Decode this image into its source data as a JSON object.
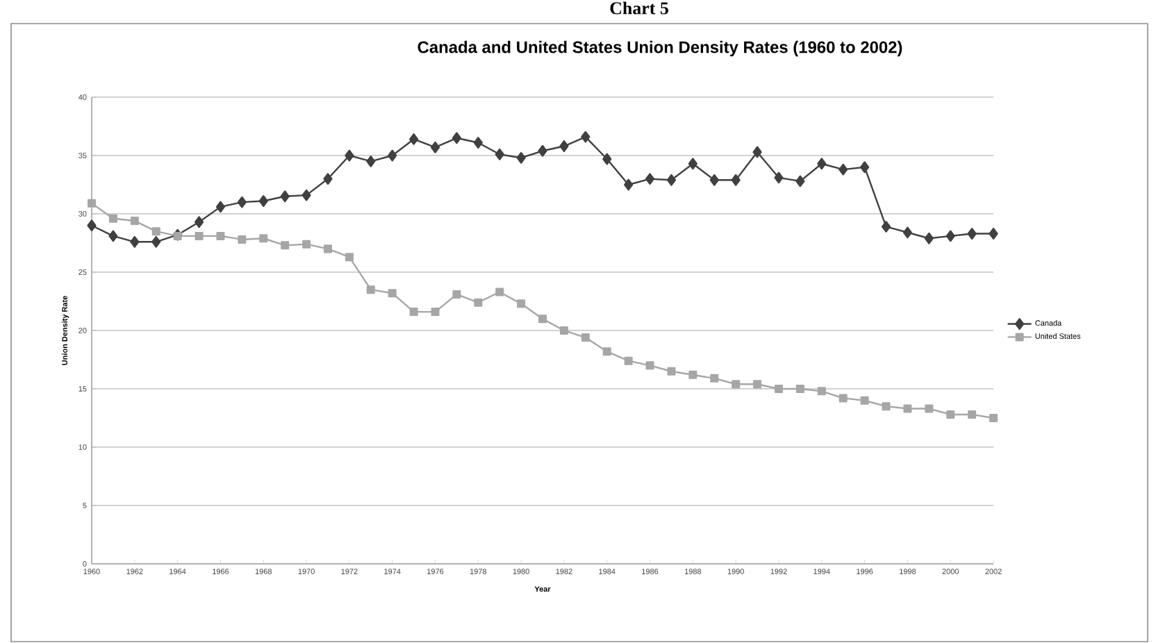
{
  "chart_data": {
    "type": "line",
    "title": "Canada and United States Union Density Rates (1960 to 2002)",
    "xlabel": "Year",
    "ylabel": "Union Density Rate",
    "annotations": [
      "Chart 5"
    ],
    "x": [
      1960,
      1961,
      1962,
      1963,
      1964,
      1965,
      1966,
      1967,
      1968,
      1969,
      1970,
      1971,
      1972,
      1973,
      1974,
      1975,
      1976,
      1977,
      1978,
      1979,
      1980,
      1981,
      1982,
      1983,
      1984,
      1985,
      1986,
      1987,
      1988,
      1989,
      1990,
      1991,
      1992,
      1993,
      1994,
      1995,
      1996,
      1997,
      1998,
      1999,
      2000,
      2001,
      2002
    ],
    "series": [
      {
        "name": "Canada",
        "color": "#404040",
        "marker": "diamond",
        "values": [
          29.0,
          28.1,
          27.6,
          27.6,
          28.2,
          29.3,
          30.6,
          31.0,
          31.1,
          31.5,
          31.6,
          33.0,
          35.0,
          34.5,
          35.0,
          36.4,
          35.7,
          36.5,
          36.1,
          35.1,
          34.8,
          35.4,
          35.8,
          36.6,
          34.7,
          32.5,
          33.0,
          32.9,
          34.3,
          32.9,
          32.9,
          35.3,
          33.1,
          32.8,
          34.3,
          33.8,
          34.0,
          28.9,
          28.4,
          27.9,
          28.1,
          28.3,
          28.3
        ]
      },
      {
        "name": "United States",
        "color": "#a6a6a6",
        "marker": "square",
        "values": [
          30.9,
          29.6,
          29.4,
          28.5,
          28.1,
          28.1,
          28.1,
          27.8,
          27.9,
          27.3,
          27.4,
          27.0,
          26.3,
          23.5,
          23.2,
          21.6,
          21.6,
          23.1,
          22.4,
          23.3,
          22.3,
          21.0,
          20.0,
          19.4,
          18.2,
          17.4,
          17.0,
          16.5,
          16.2,
          15.9,
          15.4,
          15.4,
          15.0,
          15.0,
          14.8,
          14.2,
          14.0,
          13.5,
          13.3,
          13.3,
          12.8,
          12.8,
          12.5
        ]
      }
    ],
    "xlim": [
      1960,
      2002
    ],
    "xticks": [
      1960,
      1962,
      1964,
      1966,
      1968,
      1970,
      1972,
      1974,
      1976,
      1978,
      1980,
      1982,
      1984,
      1986,
      1988,
      1990,
      1992,
      1994,
      1996,
      1998,
      2000,
      2002
    ],
    "ylim": [
      0,
      40
    ],
    "yticks": [
      0,
      5,
      10,
      15,
      20,
      25,
      30,
      35,
      40
    ],
    "grid": "y",
    "legend": "right",
    "line_style": "solid"
  }
}
